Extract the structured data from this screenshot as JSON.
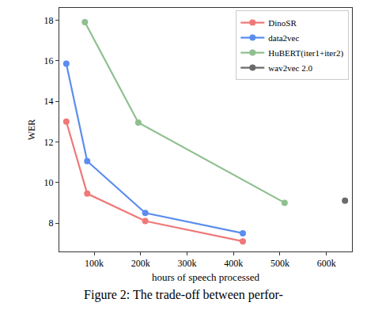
{
  "chart_data": {
    "type": "line",
    "x_label": "hours of speech processed",
    "y_label": "WER",
    "caption": "Figure 2: The trade-off between perfor-",
    "xlim": [
      25000,
      655000
    ],
    "ylim": [
      6.6,
      18.6
    ],
    "xticks": [
      {
        "value": 100000,
        "label": "100k"
      },
      {
        "value": 200000,
        "label": "200k"
      },
      {
        "value": 300000,
        "label": "300k"
      },
      {
        "value": 400000,
        "label": "400k"
      },
      {
        "value": 500000,
        "label": "500k"
      },
      {
        "value": 600000,
        "label": "600k"
      }
    ],
    "yticks": [
      8,
      10,
      12,
      14,
      16,
      18
    ],
    "grid": false,
    "legend": "upper right",
    "marker": "circle",
    "series": [
      {
        "name": "DinoSR",
        "color": "#f07878",
        "x": [
          40000,
          85000,
          210000,
          420000
        ],
        "values": [
          13.0,
          9.45,
          8.1,
          7.1
        ]
      },
      {
        "name": "data2vec",
        "color": "#5b8def",
        "x": [
          40000,
          85000,
          210000,
          420000
        ],
        "values": [
          15.85,
          11.05,
          8.5,
          7.5
        ]
      },
      {
        "name": "HuBERT(iter1+iter2)",
        "color": "#8fbf8f",
        "x": [
          80000,
          195000,
          510000
        ],
        "values": [
          17.9,
          12.95,
          9.0
        ]
      },
      {
        "name": "wav2vec 2.0",
        "color": "#6b6b6b",
        "x": [
          640000
        ],
        "values": [
          9.1
        ]
      }
    ]
  }
}
